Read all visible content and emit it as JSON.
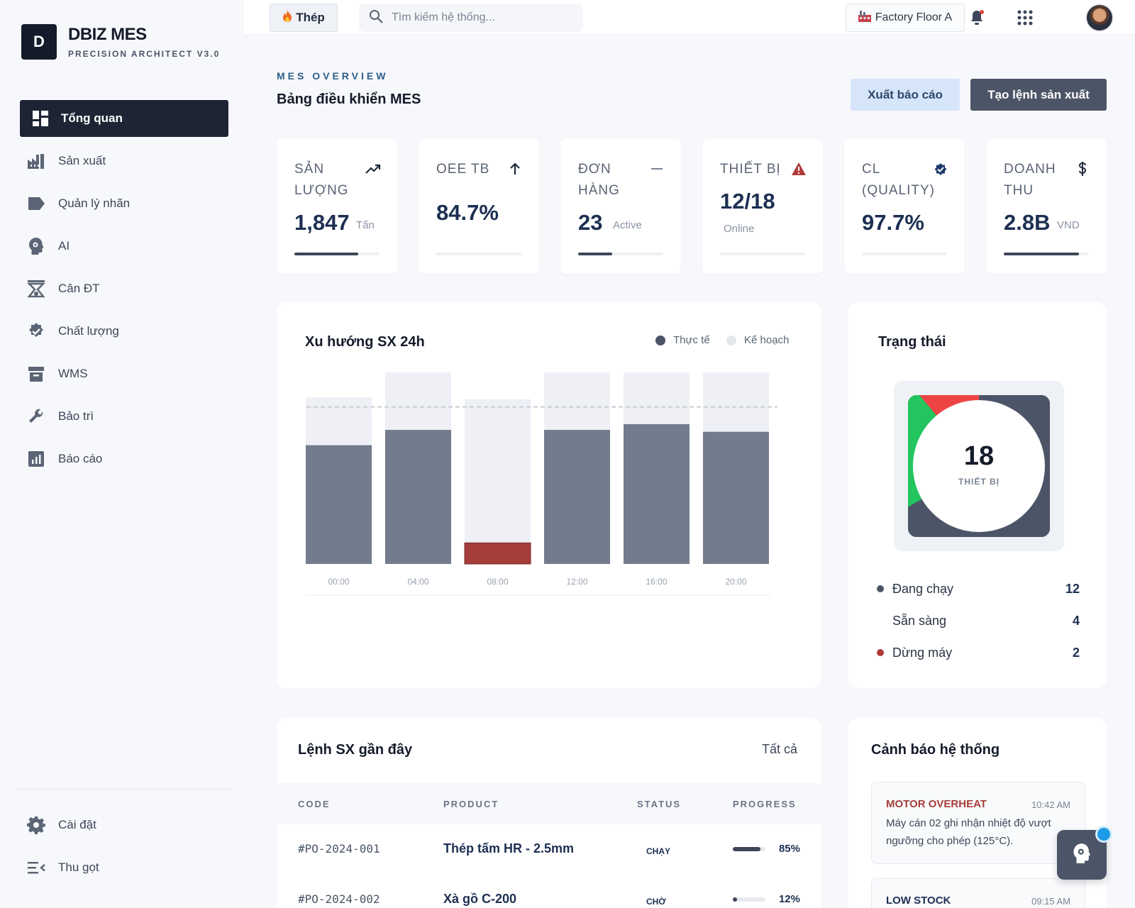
{
  "brand": {
    "logo_letter": "D",
    "name": "DBIZ MES",
    "subtitle": "PRECISION ARCHITECT V3.0"
  },
  "sidebar": {
    "items": [
      {
        "label": "Tổng quan",
        "icon": "dashboard-icon",
        "active": true
      },
      {
        "label": "Sản xuất",
        "icon": "factory-icon"
      },
      {
        "label": "Quản lý nhãn",
        "icon": "label-icon"
      },
      {
        "label": "AI",
        "icon": "ai-brain-icon"
      },
      {
        "label": "Cân ĐT",
        "icon": "scale-icon"
      },
      {
        "label": "Chất lượng",
        "icon": "verified-icon"
      },
      {
        "label": "WMS",
        "icon": "inventory-icon"
      },
      {
        "label": "Bảo trì",
        "icon": "wrench-icon"
      },
      {
        "label": "Báo cáo",
        "icon": "report-chart-icon"
      }
    ],
    "bottom": [
      {
        "label": "Cài đặt",
        "icon": "gear-icon"
      },
      {
        "label": "Thu gọt",
        "icon": "collapse-menu-icon"
      }
    ]
  },
  "topbar": {
    "material_chip": "Thép",
    "search_placeholder": "Tìm kiếm hệ thống...",
    "factory": "Factory Floor A"
  },
  "header": {
    "overline": "MES OVERVIEW",
    "title": "Bảng điều khiển MES",
    "export_label": "Xuất báo cáo",
    "create_label": "Tạo lệnh sản xuất"
  },
  "kpis": [
    {
      "label": "SẢN LƯỢNG",
      "value": "1,847",
      "unit": "Tấn",
      "icon": "trending-up-icon",
      "progress": 0.75
    },
    {
      "label": "OEE TB",
      "value": "84.7%",
      "unit": "",
      "icon": "arrow-up-icon",
      "progress": 0
    },
    {
      "label": "ĐƠN HÀNG",
      "value": "23",
      "unit": "Active",
      "icon": "dash-icon",
      "progress": 0.4
    },
    {
      "label": "THIẾT BỊ",
      "value": "12/18",
      "unit": "Online",
      "icon": "warning-icon",
      "progress": 0
    },
    {
      "label": "CL (QUALITY)",
      "value": "97.7%",
      "unit": "",
      "icon": "verified-badge-icon",
      "progress": 0
    },
    {
      "label": "DOANH THU",
      "value": "2.8B",
      "unit": "VND",
      "icon": "dollar-icon",
      "progress": 0.88
    }
  ],
  "trend": {
    "title": "Xu hướng SX 24h",
    "legend_actual": "Thực tế",
    "legend_plan": "Kế hoạch"
  },
  "chart_data": {
    "type": "bar",
    "categories": [
      "00:00",
      "04:00",
      "08:00",
      "12:00",
      "16:00",
      "20:00"
    ],
    "series": [
      {
        "name": "Thực tế",
        "values": [
          62,
          70,
          11,
          70,
          73,
          69
        ]
      },
      {
        "name": "Kế hoạch",
        "values": [
          87,
          100,
          86,
          100,
          100,
          100
        ]
      }
    ],
    "target_line": 82,
    "highlight_category": "08:00",
    "ylim": [
      0,
      100
    ],
    "colors": {
      "actual": "#737c8c",
      "plan": "#eef0f5",
      "alert": "#a53d3a",
      "target": "#c8ccd3"
    },
    "grid": false,
    "legend_position": "top-right"
  },
  "status": {
    "title": "Trạng thái",
    "total": "18",
    "total_label": "THIẾT BỊ",
    "rows": [
      {
        "label": "Đang chạy",
        "value": "12",
        "color": "#4c5567"
      },
      {
        "label": "Sẵn sàng",
        "value": "4",
        "color": "#22c55e"
      },
      {
        "label": "Dừng máy",
        "value": "2",
        "color": "#b03a3a"
      }
    ]
  },
  "orders": {
    "title": "Lệnh SX gần đây",
    "view_all": "Tất cả",
    "columns": [
      "CODE",
      "PRODUCT",
      "STATUS",
      "PROGRESS"
    ],
    "rows": [
      {
        "code": "#PO-2024-001",
        "product": "Thép tấm HR - 2.5mm",
        "status": "CHẠY",
        "progress": "85%",
        "progress_value": 0.85
      },
      {
        "code": "#PO-2024-002",
        "product": "Xà gồ C-200",
        "status": "CHỜ",
        "progress": "12%",
        "progress_value": 0.12
      }
    ]
  },
  "alerts": {
    "title": "Cảnh báo hệ thống",
    "items": [
      {
        "title": "MOTOR OVERHEAT",
        "time": "10:42 AM",
        "message": "Máy cán 02 ghi nhận nhiệt độ vượt ngưỡng cho phép (125°C).",
        "color": "#a53d3a"
      },
      {
        "title": "LOW STOCK",
        "time": "09:15 AM",
        "message": "",
        "color": "#1d2f52"
      }
    ]
  }
}
